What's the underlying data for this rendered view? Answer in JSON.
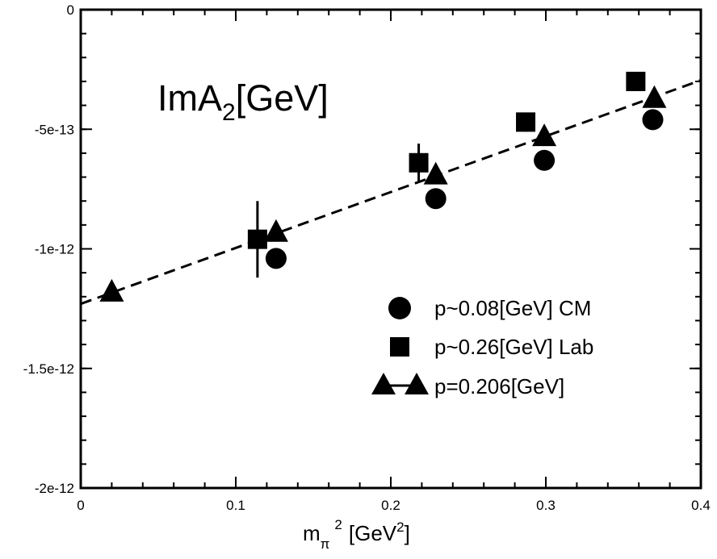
{
  "chart_data": {
    "type": "scatter",
    "title": {
      "main": "ImA",
      "sub": "2",
      "unit": "[GeV]"
    },
    "xlabel": {
      "main": "m",
      "sub": "π",
      "sup": "2",
      "unit_open": "[GeV",
      "unit_sup": "2",
      "unit_close": "]"
    },
    "ylabel": "",
    "xlim": [
      0,
      0.4
    ],
    "ylim": [
      -2e-12,
      0
    ],
    "x_ticks": [
      0,
      0.1,
      0.2,
      0.3,
      0.4
    ],
    "x_tick_labels": [
      "0",
      "0.1",
      "0.2",
      "0.3",
      "0.4"
    ],
    "y_ticks": [
      0,
      -5e-13,
      -1e-12,
      -1.5e-12,
      -2e-12
    ],
    "y_tick_labels": [
      "0",
      "-5e-13",
      "-1e-12",
      "-1.5e-12",
      "-2e-12"
    ],
    "grid": false,
    "legend_position": "bottom-right",
    "series": [
      {
        "name": "p~0.08[GeV] CM",
        "marker": "circle",
        "points": [
          {
            "x": 0.126,
            "y": -1.04e-12
          },
          {
            "x": 0.229,
            "y": -7.9e-13
          },
          {
            "x": 0.299,
            "y": -6.3e-13
          },
          {
            "x": 0.369,
            "y": -4.6e-13
          }
        ]
      },
      {
        "name": "p~0.26[GeV] Lab",
        "marker": "square",
        "points": [
          {
            "x": 0.114,
            "y": -9.6e-13,
            "err": 8e-14
          },
          {
            "x": 0.218,
            "y": -6.4e-13,
            "err": 4e-14
          },
          {
            "x": 0.287,
            "y": -4.7e-13,
            "err": 2e-14
          },
          {
            "x": 0.358,
            "y": -3e-13,
            "err": 1e-14
          }
        ]
      },
      {
        "name": "p=0.206[GeV]",
        "marker": "triangle",
        "points": [
          {
            "x": 0.02,
            "y": -1.18e-12
          },
          {
            "x": 0.126,
            "y": -9.3e-13
          },
          {
            "x": 0.229,
            "y": -6.9e-13
          },
          {
            "x": 0.299,
            "y": -5.3e-13
          },
          {
            "x": 0.37,
            "y": -3.7e-13
          }
        ]
      }
    ],
    "fit_line": {
      "style": "dashed",
      "x": [
        0,
        0.4
      ],
      "y": [
        -1.23e-12,
        -2.95e-13
      ]
    }
  }
}
